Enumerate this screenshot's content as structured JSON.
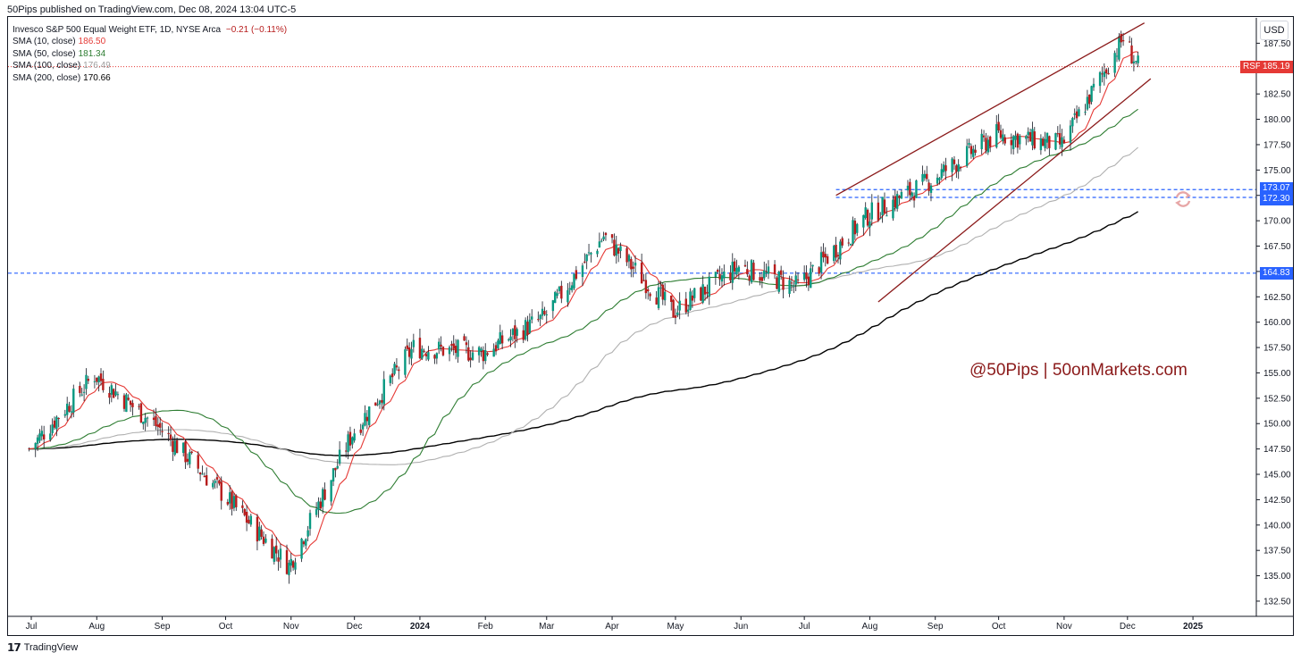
{
  "header": {
    "published": "50Pips published on TradingView.com, Dec 08, 2024 13:04 UTC-5"
  },
  "legend": {
    "title": "Invesco S&P 500 Equal Weight ETF, 1D, NYSE Arca",
    "change": "−0.21 (−0.11%)",
    "change_color": "#b71c1c",
    "indicators": [
      {
        "label": "SMA (10, close)",
        "value": "186.50",
        "color": "#e53935"
      },
      {
        "label": "SMA (50, close)",
        "value": "181.34",
        "color": "#2e7d32"
      },
      {
        "label": "SMA (100, close)",
        "value": "176.49",
        "color": "#9e9e9e"
      },
      {
        "label": "SMA (200, close)",
        "value": "170.66",
        "color": "#000000"
      }
    ]
  },
  "currency_button": "USD",
  "watermark": "@50Pips  |  50onMarkets.com",
  "footer": {
    "logo_icon": "tradingview-logo-icon",
    "brand": "TradingView"
  },
  "price_labels": {
    "symbol_tag": "RSP",
    "last": "185.19",
    "resistance_upper": "173.07",
    "resistance_lower": "172.30",
    "support": "164.83"
  },
  "chart_data": {
    "type": "candlestick",
    "symbol": "RSP",
    "timeframe": "1D",
    "ylim": [
      131,
      190
    ],
    "y_ticks": [
      "132.50",
      "135.00",
      "137.50",
      "140.00",
      "142.50",
      "145.00",
      "147.50",
      "150.00",
      "152.50",
      "155.00",
      "157.50",
      "160.00",
      "162.50",
      "165.00",
      "167.50",
      "170.00",
      "172.50",
      "175.00",
      "177.50",
      "180.00",
      "182.50",
      "185.00",
      "187.50"
    ],
    "x_ticks": [
      "Jul",
      "Aug",
      "Sep",
      "Oct",
      "Nov",
      "Dec",
      "2024",
      "Feb",
      "Mar",
      "Apr",
      "May",
      "Jun",
      "Jul",
      "Aug",
      "Sep",
      "Oct",
      "Nov",
      "Dec",
      "2025"
    ],
    "close_series_monthly": [
      {
        "date": "2023-06-30",
        "close": 147.5
      },
      {
        "date": "2023-07-31",
        "close": 154.8
      },
      {
        "date": "2023-08-31",
        "close": 149.5
      },
      {
        "date": "2023-09-29",
        "close": 143.2
      },
      {
        "date": "2023-10-31",
        "close": 136.0
      },
      {
        "date": "2023-11-30",
        "close": 149.0
      },
      {
        "date": "2023-12-29",
        "close": 157.5
      },
      {
        "date": "2024-01-31",
        "close": 157.0
      },
      {
        "date": "2024-02-29",
        "close": 160.5
      },
      {
        "date": "2024-03-28",
        "close": 168.5
      },
      {
        "date": "2024-04-30",
        "close": 161.0
      },
      {
        "date": "2024-05-31",
        "close": 165.5
      },
      {
        "date": "2024-06-28",
        "close": 163.5
      },
      {
        "date": "2024-07-31",
        "close": 170.5
      },
      {
        "date": "2024-08-30",
        "close": 174.0
      },
      {
        "date": "2024-09-30",
        "close": 178.5
      },
      {
        "date": "2024-10-31",
        "close": 177.5
      },
      {
        "date": "2024-11-29",
        "close": 188.0
      },
      {
        "date": "2024-12-06",
        "close": 185.19
      }
    ],
    "sma_latest": {
      "SMA10": 186.5,
      "SMA50": 181.34,
      "SMA100": 176.49,
      "SMA200": 170.66
    },
    "horizontal_levels": [
      173.07,
      172.3,
      164.83
    ],
    "channel": {
      "upper": [
        {
          "date": "2024-07-16",
          "price": 172.5
        },
        {
          "date": "2024-12-09",
          "price": 189.5
        }
      ],
      "lower": [
        {
          "date": "2024-08-05",
          "price": 162.0
        },
        {
          "date": "2024-12-12",
          "price": 184.0
        }
      ]
    },
    "last_price": 185.19
  }
}
